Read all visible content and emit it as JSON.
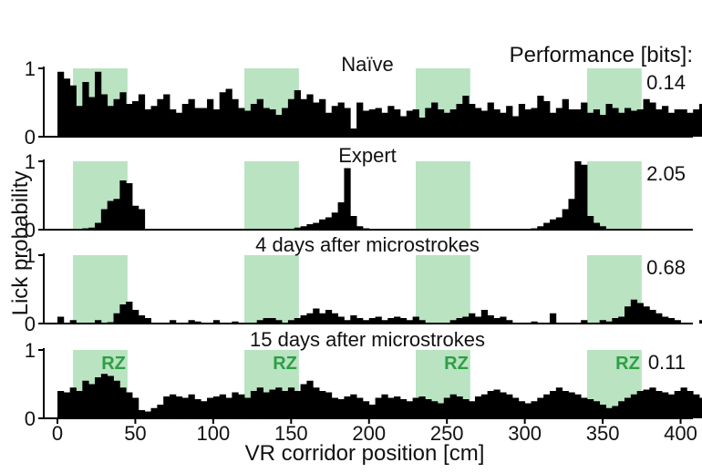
{
  "chart_data": {
    "type": "bar",
    "xlabel": "VR corridor position [cm]",
    "ylabel": "Lick probability",
    "xlim": [
      0,
      400
    ],
    "x_ticks": [
      "0",
      "50",
      "100",
      "150",
      "200",
      "250",
      "300",
      "350",
      "400"
    ],
    "y_ticks": [
      "0",
      "1"
    ],
    "ylim": [
      0,
      1
    ],
    "performance_label": "Performance [bits]:",
    "reward_zone_label": "RZ",
    "reward_zone_color": "#b9e3c1",
    "rz_label_color": "#2f9e46",
    "bar_color": "#000000",
    "reward_zones": [
      [
        10,
        45
      ],
      [
        120,
        155
      ],
      [
        230,
        265
      ],
      [
        340,
        375
      ]
    ],
    "bin_width_cm": 4,
    "panels": [
      {
        "title": "Naïve",
        "performance": "0.14",
        "values": [
          0.95,
          0.85,
          0.75,
          0.45,
          0.8,
          0.58,
          0.95,
          0.62,
          0.45,
          0.55,
          0.65,
          0.48,
          0.52,
          0.62,
          0.4,
          0.45,
          0.55,
          0.62,
          0.4,
          0.35,
          0.48,
          0.55,
          0.42,
          0.42,
          0.55,
          0.4,
          0.65,
          0.7,
          0.55,
          0.42,
          0.38,
          0.48,
          0.55,
          0.42,
          0.4,
          0.32,
          0.42,
          0.55,
          0.68,
          0.55,
          0.62,
          0.5,
          0.55,
          0.35,
          0.45,
          0.5,
          0.42,
          0.12,
          0.5,
          0.38,
          0.4,
          0.42,
          0.35,
          0.45,
          0.4,
          0.3,
          0.38,
          0.4,
          0.28,
          0.42,
          0.5,
          0.4,
          0.35,
          0.4,
          0.48,
          0.6,
          0.48,
          0.42,
          0.38,
          0.5,
          0.4,
          0.35,
          0.45,
          0.3,
          0.48,
          0.4,
          0.42,
          0.6,
          0.52,
          0.35,
          0.42,
          0.55,
          0.4,
          0.4,
          0.5,
          0.35,
          0.4,
          0.32,
          0.48,
          0.42,
          0.35,
          0.42,
          0.38,
          0.4,
          0.55,
          0.5,
          0.4,
          0.45,
          0.35,
          0.4,
          0.4,
          0.35,
          0.4,
          0.48,
          0.35,
          0.55,
          0.3,
          0.42,
          0.6,
          0.4,
          0.45,
          0.35,
          0.48,
          0.4,
          0.45,
          0.35,
          0.42,
          0.38,
          0.45,
          0.65,
          0.5,
          0.38,
          0.4,
          0.55,
          0.75,
          0.6,
          0.38,
          0.42,
          0.35,
          0.4,
          0.4,
          0.38,
          0.35,
          0.38,
          0.4,
          0.4,
          0.45,
          0.35,
          0.55,
          0.65,
          0.8,
          0.45,
          0.4,
          0.4,
          0.25,
          0.2,
          0.15,
          0.08,
          0.2,
          0.25,
          0.3,
          0.15,
          0.25,
          0.22,
          0.25,
          0.2
        ]
      },
      {
        "title": "Expert",
        "performance": "2.05",
        "values": [
          0,
          0,
          0,
          0,
          0.02,
          0.03,
          0.1,
          0.3,
          0.42,
          0.45,
          0.72,
          0.68,
          0.35,
          0.3,
          0,
          0,
          0,
          0,
          0,
          0,
          0,
          0,
          0,
          0,
          0,
          0,
          0,
          0,
          0,
          0,
          0,
          0,
          0,
          0,
          0,
          0,
          0,
          0,
          0.03,
          0.05,
          0.08,
          0.1,
          0.15,
          0.18,
          0.25,
          0.4,
          0.9,
          0.2,
          0.05,
          0.02,
          0,
          0,
          0,
          0,
          0,
          0,
          0,
          0,
          0,
          0,
          0,
          0,
          0,
          0,
          0,
          0,
          0,
          0,
          0,
          0,
          0,
          0,
          0,
          0,
          0,
          0,
          0.02,
          0.05,
          0.1,
          0.15,
          0.18,
          0.3,
          0.45,
          1.0,
          0.95,
          0.2,
          0.1,
          0.05,
          0,
          0,
          0,
          0,
          0,
          0,
          0,
          0,
          0,
          0,
          0,
          0,
          0,
          0,
          0,
          0,
          0,
          0,
          0,
          0,
          0,
          0,
          0,
          0,
          0,
          0,
          0,
          0,
          0,
          0,
          0.02,
          0.05,
          0.1,
          0.18,
          0.3,
          0.45,
          0.75,
          0.85,
          0.25,
          0.1,
          0.03,
          0,
          0,
          0,
          0,
          0,
          0,
          0,
          0,
          0,
          0,
          0,
          0,
          0,
          0,
          0,
          0,
          0,
          0,
          0,
          0,
          0,
          0,
          0,
          0,
          0
        ]
      },
      {
        "title": "4 days after microstrokes",
        "performance": "0.68",
        "values": [
          0.1,
          0,
          0.05,
          0,
          0,
          0,
          0.05,
          0,
          0.02,
          0.15,
          0.28,
          0.32,
          0.2,
          0.12,
          0.08,
          0,
          0,
          0,
          0.05,
          0,
          0,
          0.05,
          0.03,
          0,
          0,
          0.05,
          0,
          0,
          0.03,
          0,
          0,
          0,
          0.05,
          0.08,
          0.08,
          0.05,
          0,
          0.05,
          0.08,
          0.12,
          0.15,
          0.22,
          0.15,
          0.2,
          0.15,
          0.1,
          0.05,
          0.12,
          0.08,
          0.05,
          0.08,
          0.1,
          0.05,
          0.08,
          0.1,
          0.08,
          0.05,
          0.1,
          0.05,
          0,
          0,
          0,
          0,
          0.05,
          0.08,
          0.1,
          0.15,
          0.1,
          0.2,
          0.12,
          0.08,
          0.1,
          0.05,
          0,
          0,
          0,
          0.03,
          0,
          0,
          0.15,
          0,
          0,
          0,
          0,
          0.05,
          0,
          0,
          0.05,
          0.03,
          0.08,
          0.1,
          0.25,
          0.35,
          0.3,
          0.25,
          0.2,
          0.15,
          0.1,
          0.08,
          0.05,
          0,
          0,
          0,
          0.05,
          0.03,
          0.15,
          0.1,
          0.08,
          0,
          0,
          0,
          0,
          0,
          0,
          0,
          0,
          0,
          0,
          0,
          0,
          0,
          0,
          0,
          0,
          0,
          0,
          0,
          0,
          0,
          0,
          0,
          0,
          0,
          0,
          0,
          0,
          0,
          0,
          0,
          0,
          0,
          0,
          0,
          0,
          0,
          0,
          0,
          0,
          0,
          0,
          0,
          0,
          0,
          0,
          0,
          0,
          0,
          0,
          0
        ]
      },
      {
        "title": "15 days after microstrokes",
        "performance": "0.11",
        "values": [
          0.4,
          0.38,
          0.45,
          0.4,
          0.55,
          0.5,
          0.6,
          0.65,
          0.62,
          0.55,
          0.45,
          0.38,
          0.3,
          0.12,
          0.1,
          0.15,
          0.2,
          0.32,
          0.35,
          0.32,
          0.3,
          0.35,
          0.28,
          0.25,
          0.3,
          0.32,
          0.35,
          0.3,
          0.38,
          0.35,
          0.3,
          0.4,
          0.45,
          0.38,
          0.42,
          0.45,
          0.4,
          0.45,
          0.4,
          0.5,
          0.55,
          0.45,
          0.4,
          0.38,
          0.3,
          0.28,
          0.32,
          0.35,
          0.3,
          0.25,
          0.2,
          0.3,
          0.35,
          0.3,
          0.32,
          0.28,
          0.25,
          0.3,
          0.32,
          0.28,
          0.25,
          0.22,
          0.3,
          0.35,
          0.32,
          0.28,
          0.25,
          0.32,
          0.35,
          0.4,
          0.42,
          0.38,
          0.35,
          0.3,
          0.25,
          0.22,
          0.25,
          0.3,
          0.35,
          0.4,
          0.45,
          0.4,
          0.38,
          0.35,
          0.3,
          0.28,
          0.25,
          0.2,
          0.15,
          0.18,
          0.25,
          0.3,
          0.35,
          0.4,
          0.42,
          0.45,
          0.4,
          0.38,
          0.35,
          0.4,
          0.45,
          0.4,
          0.35,
          0.3,
          0.25,
          0.3,
          0.4,
          0.5,
          0.45,
          0.4,
          0.35,
          0.3,
          0.28,
          0.25,
          0.32,
          0.35,
          0.3,
          0.28,
          0.32,
          0.3,
          0.28,
          0.25,
          0.28,
          0.25,
          0.22,
          0.25
        ]
      }
    ]
  }
}
